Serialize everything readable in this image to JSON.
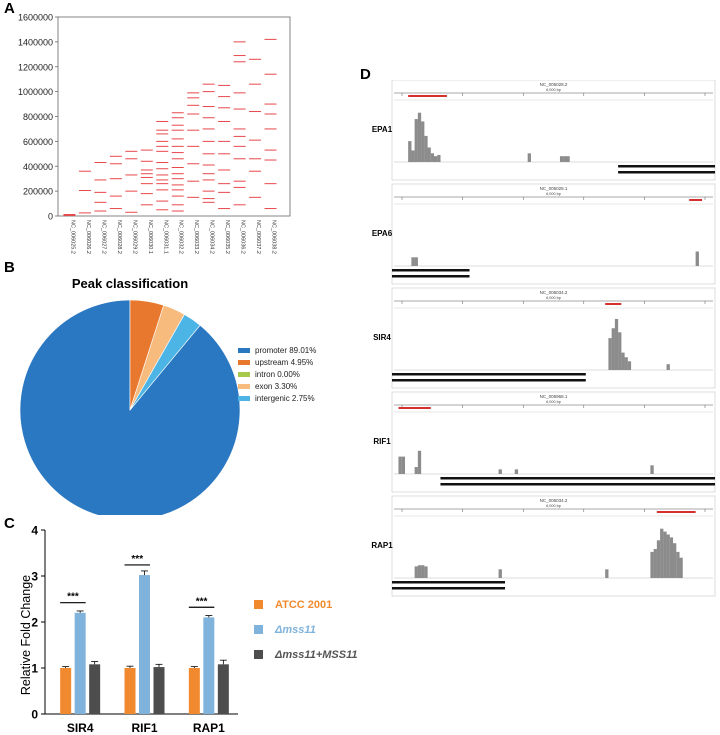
{
  "panels": {
    "a": "A",
    "b": "B",
    "c": "C",
    "d": "D"
  },
  "chart_data": [
    {
      "type": "scatter",
      "panel": "A",
      "y_ticks": [
        "0",
        "200000",
        "400000",
        "600000",
        "800000",
        "1000000",
        "1200000",
        "1400000",
        "1600000"
      ],
      "ylim": [
        0,
        1600000
      ],
      "categories": [
        "NC_006025.2",
        "NC_006026.2",
        "NC_006027.2",
        "NC_006028.2",
        "NC_006029.2",
        "NC_006030.1",
        "NC_006031.1",
        "NC_006032.2",
        "NC_006033.2",
        "NC_006034.2",
        "NC_006035.2",
        "NC_006036.2",
        "NC_006037.2",
        "NC_006038.2"
      ],
      "series_color": "#e8474b",
      "peak_positions": [
        [
          5000,
          12000
        ],
        [
          25000,
          205000,
          360000
        ],
        [
          40000,
          110000,
          190000,
          290000,
          430000
        ],
        [
          60000,
          160000,
          300000,
          420000,
          480000
        ],
        [
          30000,
          200000,
          330000,
          460000,
          520000
        ],
        [
          90000,
          180000,
          260000,
          310000,
          340000,
          370000,
          440000,
          530000
        ],
        [
          50000,
          120000,
          210000,
          260000,
          290000,
          330000,
          380000,
          430000,
          520000,
          560000,
          600000,
          660000,
          690000,
          760000
        ],
        [
          40000,
          90000,
          160000,
          210000,
          250000,
          300000,
          340000,
          390000,
          460000,
          510000,
          560000,
          620000,
          690000,
          730000,
          790000,
          830000
        ],
        [
          150000,
          280000,
          420000,
          560000,
          690000,
          820000,
          890000,
          950000,
          990000
        ],
        [
          110000,
          140000,
          200000,
          290000,
          340000,
          410000,
          500000,
          600000,
          700000,
          790000,
          880000,
          1000000,
          1060000
        ],
        [
          60000,
          190000,
          260000,
          370000,
          500000,
          600000,
          760000,
          870000,
          960000,
          1050000
        ],
        [
          90000,
          230000,
          280000,
          460000,
          560000,
          640000,
          700000,
          860000,
          990000,
          1240000,
          1290000,
          1400000
        ],
        [
          150000,
          360000,
          460000,
          610000,
          840000,
          1060000,
          1260000
        ],
        [
          60000,
          260000,
          450000,
          530000,
          700000,
          820000,
          900000,
          1140000,
          1420000
        ]
      ]
    },
    {
      "type": "pie",
      "panel": "B",
      "title": "Peak classification",
      "legend_position": "right",
      "slices": [
        {
          "label": "promoter 89.01%",
          "value": 89.01,
          "color": "#2b78c2"
        },
        {
          "label": "upstream 4.95%",
          "value": 4.95,
          "color": "#e8782e"
        },
        {
          "label": "intron 0.00%",
          "value": 0.0,
          "color": "#a7c94a"
        },
        {
          "label": "exon 3.30%",
          "value": 3.3,
          "color": "#f7bb7e"
        },
        {
          "label": "intergenic 2.75%",
          "value": 2.75,
          "color": "#4cb5e6"
        }
      ]
    },
    {
      "type": "bar",
      "panel": "C",
      "ylabel": "Relative Fold Change",
      "ylim": [
        0,
        4
      ],
      "y_ticks": [
        "0",
        "1",
        "2",
        "3",
        "4"
      ],
      "categories": [
        "SIR4",
        "RIF1",
        "RAP1"
      ],
      "series": [
        {
          "name": "ATCC 2001",
          "values": [
            1.0,
            1.0,
            1.0
          ],
          "errors": [
            0.03,
            0.04,
            0.03
          ],
          "color": "#f18a2e"
        },
        {
          "name": "Δmss11",
          "values": [
            2.2,
            3.02,
            2.1
          ],
          "errors": [
            0.04,
            0.09,
            0.04
          ],
          "color": "#7fb3dc"
        },
        {
          "name": "Δmss11+MSS11",
          "values": [
            1.08,
            1.02,
            1.08
          ],
          "errors": [
            0.06,
            0.06,
            0.09
          ],
          "color": "#4d4d4d"
        }
      ],
      "significance": [
        "***",
        "***",
        "***"
      ]
    }
  ],
  "tracks": [
    {
      "name": "EPA1",
      "accession": "NC_006028.2",
      "scale": "6,000 bp"
    },
    {
      "name": "EPA6",
      "accession": "NC_006028.1",
      "scale": "6,000 bp"
    },
    {
      "name": "SIR4",
      "accession": "NC_006034.2",
      "scale": "6,000 bp"
    },
    {
      "name": "RIF1",
      "accession": "NC_005968.1",
      "scale": "6,000 bp"
    },
    {
      "name": "RAP1",
      "accession": "NC_006034.2",
      "scale": "6,000 bp"
    }
  ]
}
